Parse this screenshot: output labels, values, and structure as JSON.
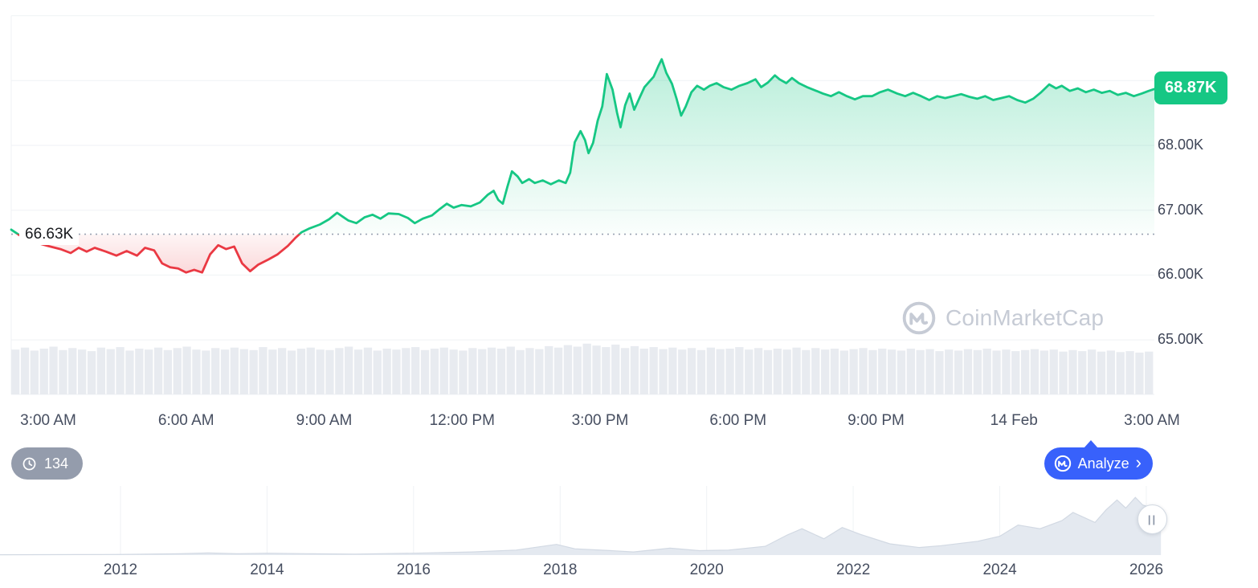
{
  "colors": {
    "green": "#16c784",
    "red": "#ea3943",
    "blue": "#3861fb",
    "grid": "#eff2f5",
    "volume": "#e8ebf0",
    "minimap_fill": "#e4e9f0",
    "minimap_line": "#d2d9e3",
    "baseline_dots": "#9aa3b2",
    "axis_text": "#464e60"
  },
  "chart": {
    "current_price_label": "68.87K",
    "baseline_label": "66.63K"
  },
  "watermark": {
    "text": "CoinMarketCap",
    "icon": "coinmarketcap-logo-icon"
  },
  "history_badge": {
    "count": "134",
    "icon": "history-clock-icon"
  },
  "analyze_button": {
    "label": "Analyze",
    "chevron": "›",
    "icon": "coinmarketcap-logo-icon"
  },
  "minimap": {
    "handle_glyph": "||",
    "year_labels": [
      "2012",
      "2014",
      "2016",
      "2018",
      "2020",
      "2022",
      "2024",
      "2026"
    ]
  },
  "chart_data": [
    {
      "type": "area-line",
      "title": "",
      "x_tick_labels": [
        "3:00 AM",
        "6:00 AM",
        "9:00 AM",
        "12:00 PM",
        "3:00 PM",
        "6:00 PM",
        "9:00 PM",
        "14 Feb",
        "3:00 AM"
      ],
      "y_ticks": [
        {
          "value": 68,
          "label": "68.00K"
        },
        {
          "value": 67,
          "label": "67.00K"
        },
        {
          "value": 66,
          "label": "66.00K"
        },
        {
          "value": 65,
          "label": "65.00K"
        }
      ],
      "grid_values_k": [
        70,
        69,
        68,
        67,
        66,
        65
      ],
      "baseline_k": 66.63,
      "last_price_k": 68.87,
      "ylim_k": [
        64.85,
        69.6
      ],
      "series_k": [
        [
          0.0,
          66.7
        ],
        [
          0.006,
          66.63
        ],
        [
          0.011,
          66.57
        ],
        [
          0.022,
          66.5
        ],
        [
          0.032,
          66.45
        ],
        [
          0.043,
          66.4
        ],
        [
          0.052,
          66.34
        ],
        [
          0.059,
          66.42
        ],
        [
          0.066,
          66.36
        ],
        [
          0.073,
          66.42
        ],
        [
          0.083,
          66.36
        ],
        [
          0.092,
          66.3
        ],
        [
          0.101,
          66.37
        ],
        [
          0.11,
          66.3
        ],
        [
          0.117,
          66.42
        ],
        [
          0.125,
          66.38
        ],
        [
          0.132,
          66.18
        ],
        [
          0.139,
          66.12
        ],
        [
          0.146,
          66.1
        ],
        [
          0.153,
          66.04
        ],
        [
          0.16,
          66.08
        ],
        [
          0.167,
          66.04
        ],
        [
          0.174,
          66.32
        ],
        [
          0.181,
          66.46
        ],
        [
          0.188,
          66.4
        ],
        [
          0.195,
          66.44
        ],
        [
          0.202,
          66.18
        ],
        [
          0.209,
          66.06
        ],
        [
          0.216,
          66.16
        ],
        [
          0.225,
          66.24
        ],
        [
          0.233,
          66.32
        ],
        [
          0.242,
          66.45
        ],
        [
          0.249,
          66.58
        ],
        [
          0.254,
          66.66
        ],
        [
          0.261,
          66.72
        ],
        [
          0.27,
          66.78
        ],
        [
          0.278,
          66.86
        ],
        [
          0.285,
          66.96
        ],
        [
          0.29,
          66.9
        ],
        [
          0.295,
          66.84
        ],
        [
          0.302,
          66.8
        ],
        [
          0.309,
          66.89
        ],
        [
          0.316,
          66.93
        ],
        [
          0.323,
          66.87
        ],
        [
          0.33,
          66.95
        ],
        [
          0.339,
          66.94
        ],
        [
          0.347,
          66.88
        ],
        [
          0.353,
          66.8
        ],
        [
          0.36,
          66.87
        ],
        [
          0.368,
          66.92
        ],
        [
          0.375,
          67.02
        ],
        [
          0.381,
          67.1
        ],
        [
          0.387,
          67.04
        ],
        [
          0.394,
          67.08
        ],
        [
          0.402,
          67.06
        ],
        [
          0.41,
          67.12
        ],
        [
          0.417,
          67.24
        ],
        [
          0.422,
          67.3
        ],
        [
          0.426,
          67.16
        ],
        [
          0.43,
          67.1
        ],
        [
          0.434,
          67.36
        ],
        [
          0.438,
          67.6
        ],
        [
          0.443,
          67.52
        ],
        [
          0.447,
          67.42
        ],
        [
          0.453,
          67.48
        ],
        [
          0.458,
          67.42
        ],
        [
          0.465,
          67.46
        ],
        [
          0.472,
          67.4
        ],
        [
          0.479,
          67.46
        ],
        [
          0.485,
          67.42
        ],
        [
          0.489,
          67.58
        ],
        [
          0.493,
          68.05
        ],
        [
          0.498,
          68.22
        ],
        [
          0.502,
          68.08
        ],
        [
          0.505,
          67.88
        ],
        [
          0.509,
          68.04
        ],
        [
          0.513,
          68.38
        ],
        [
          0.517,
          68.6
        ],
        [
          0.521,
          69.1
        ],
        [
          0.526,
          68.86
        ],
        [
          0.53,
          68.5
        ],
        [
          0.533,
          68.28
        ],
        [
          0.537,
          68.62
        ],
        [
          0.541,
          68.8
        ],
        [
          0.545,
          68.55
        ],
        [
          0.55,
          68.75
        ],
        [
          0.554,
          68.9
        ],
        [
          0.558,
          68.98
        ],
        [
          0.562,
          69.06
        ],
        [
          0.566,
          69.22
        ],
        [
          0.569,
          69.33
        ],
        [
          0.573,
          69.12
        ],
        [
          0.578,
          68.95
        ],
        [
          0.582,
          68.72
        ],
        [
          0.586,
          68.46
        ],
        [
          0.59,
          68.6
        ],
        [
          0.595,
          68.82
        ],
        [
          0.6,
          68.92
        ],
        [
          0.606,
          68.86
        ],
        [
          0.611,
          68.92
        ],
        [
          0.617,
          68.96
        ],
        [
          0.623,
          68.9
        ],
        [
          0.63,
          68.86
        ],
        [
          0.637,
          68.92
        ],
        [
          0.644,
          68.96
        ],
        [
          0.651,
          69.02
        ],
        [
          0.656,
          68.9
        ],
        [
          0.662,
          68.97
        ],
        [
          0.668,
          69.08
        ],
        [
          0.672,
          69.02
        ],
        [
          0.678,
          68.96
        ],
        [
          0.683,
          69.04
        ],
        [
          0.689,
          68.96
        ],
        [
          0.696,
          68.9
        ],
        [
          0.703,
          68.85
        ],
        [
          0.71,
          68.8
        ],
        [
          0.717,
          68.76
        ],
        [
          0.724,
          68.82
        ],
        [
          0.731,
          68.76
        ],
        [
          0.738,
          68.71
        ],
        [
          0.745,
          68.76
        ],
        [
          0.753,
          68.76
        ],
        [
          0.76,
          68.82
        ],
        [
          0.767,
          68.86
        ],
        [
          0.775,
          68.8
        ],
        [
          0.782,
          68.76
        ],
        [
          0.789,
          68.81
        ],
        [
          0.796,
          68.76
        ],
        [
          0.803,
          68.7
        ],
        [
          0.81,
          68.76
        ],
        [
          0.817,
          68.73
        ],
        [
          0.824,
          68.76
        ],
        [
          0.831,
          68.79
        ],
        [
          0.838,
          68.75
        ],
        [
          0.845,
          68.72
        ],
        [
          0.852,
          68.76
        ],
        [
          0.859,
          68.7
        ],
        [
          0.866,
          68.73
        ],
        [
          0.873,
          68.76
        ],
        [
          0.88,
          68.7
        ],
        [
          0.887,
          68.66
        ],
        [
          0.894,
          68.72
        ],
        [
          0.901,
          68.82
        ],
        [
          0.908,
          68.94
        ],
        [
          0.914,
          68.88
        ],
        [
          0.919,
          68.92
        ],
        [
          0.926,
          68.84
        ],
        [
          0.933,
          68.88
        ],
        [
          0.94,
          68.82
        ],
        [
          0.947,
          68.86
        ],
        [
          0.954,
          68.81
        ],
        [
          0.961,
          68.84
        ],
        [
          0.968,
          68.78
        ],
        [
          0.975,
          68.81
        ],
        [
          0.982,
          68.76
        ],
        [
          0.989,
          68.8
        ],
        [
          0.995,
          68.84
        ],
        [
          1.0,
          68.87
        ]
      ],
      "volume_rel": [
        0.9,
        0.94,
        0.88,
        0.92,
        0.96,
        0.89,
        0.93,
        0.9,
        0.87,
        0.94,
        0.91,
        0.95,
        0.88,
        0.92,
        0.9,
        0.94,
        0.89,
        0.93,
        0.96,
        0.9,
        0.88,
        0.93,
        0.9,
        0.94,
        0.91,
        0.89,
        0.95,
        0.9,
        0.93,
        0.88,
        0.92,
        0.94,
        0.9,
        0.89,
        0.93,
        0.96,
        0.9,
        0.94,
        0.88,
        0.92,
        0.9,
        0.93,
        0.95,
        0.89,
        0.92,
        0.94,
        0.9,
        0.88,
        0.93,
        0.91,
        0.94,
        0.92,
        0.96,
        0.89,
        0.93,
        0.91,
        0.97,
        0.94,
        0.99,
        0.96,
        1.02,
        0.98,
        0.95,
        1.0,
        0.93,
        0.97,
        0.92,
        0.95,
        0.91,
        0.94,
        0.9,
        0.93,
        0.89,
        0.94,
        0.91,
        0.92,
        0.95,
        0.9,
        0.93,
        0.89,
        0.92,
        0.9,
        0.94,
        0.89,
        0.93,
        0.9,
        0.92,
        0.88,
        0.91,
        0.93,
        0.89,
        0.92,
        0.9,
        0.88,
        0.92,
        0.89,
        0.91,
        0.87,
        0.9,
        0.88,
        0.91,
        0.89,
        0.92,
        0.88,
        0.9,
        0.87,
        0.89,
        0.91,
        0.88,
        0.9,
        0.86,
        0.89,
        0.87,
        0.9,
        0.86,
        0.88,
        0.85,
        0.87,
        0.84,
        0.86
      ]
    },
    {
      "type": "area",
      "title": "all-time minimap",
      "x_tick_labels": [
        "2012",
        "2014",
        "2016",
        "2018",
        "2020",
        "2022",
        "2024",
        "2026"
      ],
      "year_ticks": [
        2012,
        2014,
        2016,
        2018,
        2020,
        2022,
        2024,
        2026
      ],
      "unit": "relative 0-1",
      "series": [
        [
          2010.3,
          0.005
        ],
        [
          2011.5,
          0.008
        ],
        [
          2012,
          0.01
        ],
        [
          2012.8,
          0.02
        ],
        [
          2013.2,
          0.035
        ],
        [
          2013.6,
          0.02
        ],
        [
          2014,
          0.03
        ],
        [
          2014.6,
          0.02
        ],
        [
          2015.2,
          0.015
        ],
        [
          2016,
          0.03
        ],
        [
          2016.8,
          0.05
        ],
        [
          2017.4,
          0.08
        ],
        [
          2017.95,
          0.17
        ],
        [
          2018.2,
          0.1
        ],
        [
          2018.7,
          0.07
        ],
        [
          2019.0,
          0.05
        ],
        [
          2019.5,
          0.11
        ],
        [
          2019.9,
          0.07
        ],
        [
          2020.3,
          0.08
        ],
        [
          2020.8,
          0.14
        ],
        [
          2021.1,
          0.32
        ],
        [
          2021.3,
          0.42
        ],
        [
          2021.6,
          0.26
        ],
        [
          2021.85,
          0.44
        ],
        [
          2022.1,
          0.33
        ],
        [
          2022.5,
          0.18
        ],
        [
          2022.9,
          0.12
        ],
        [
          2023.2,
          0.15
        ],
        [
          2023.7,
          0.22
        ],
        [
          2024.0,
          0.3
        ],
        [
          2024.25,
          0.48
        ],
        [
          2024.55,
          0.42
        ],
        [
          2024.85,
          0.55
        ],
        [
          2025.0,
          0.68
        ],
        [
          2025.15,
          0.6
        ],
        [
          2025.3,
          0.52
        ],
        [
          2025.45,
          0.72
        ],
        [
          2025.6,
          0.88
        ],
        [
          2025.72,
          0.75
        ],
        [
          2025.85,
          0.92
        ],
        [
          2025.95,
          0.8
        ],
        [
          2026.1,
          0.74
        ],
        [
          2026.2,
          0.7
        ]
      ]
    }
  ]
}
